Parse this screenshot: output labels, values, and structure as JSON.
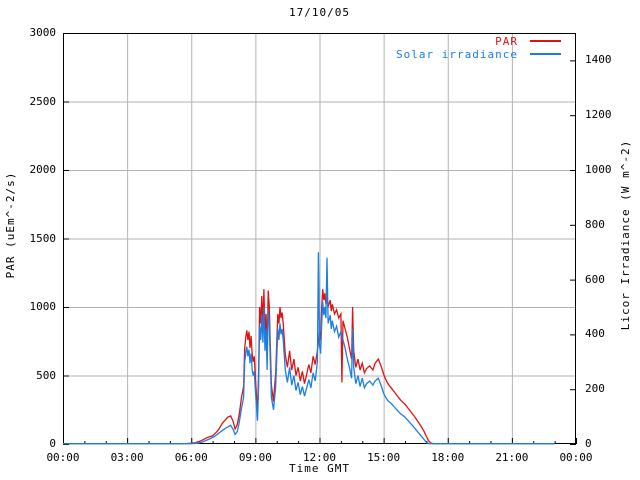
{
  "title": "17/10/05",
  "axes": {
    "x": {
      "label": "Time GMT",
      "range_hours": [
        0,
        24
      ],
      "major_tick_hours": [
        0,
        3,
        6,
        9,
        12,
        15,
        18,
        21,
        24
      ],
      "major_tick_labels": [
        "00:00",
        "03:00",
        "06:00",
        "09:00",
        "12:00",
        "15:00",
        "18:00",
        "21:00",
        "00:00"
      ],
      "minor_every_hours": 1
    },
    "y_left": {
      "label": "PAR (uEm^-2/s)",
      "range": [
        0,
        3000
      ],
      "ticks": [
        0,
        500,
        1000,
        1500,
        2000,
        2500,
        3000
      ],
      "tick_labels": [
        "0",
        "500",
        "1000",
        "1500",
        "2000",
        "2500",
        "3000"
      ]
    },
    "y_right": {
      "label": "Licor Irradiance (W m^-2)",
      "range": [
        0,
        1500
      ],
      "ticks": [
        0,
        200,
        400,
        600,
        800,
        1000,
        1200,
        1400
      ],
      "tick_labels": [
        "0",
        "200",
        "400",
        "600",
        "800",
        "1000",
        "1200",
        "1400"
      ]
    }
  },
  "legend": {
    "items": [
      {
        "label": "PAR",
        "color": "#e01212"
      },
      {
        "label": "Solar irradiance",
        "color": "#1b7ee5"
      }
    ]
  },
  "colors": {
    "axis": "#000000",
    "grid": "#b2b2b2",
    "background": "#ffffff",
    "par_line": "#e01212",
    "solar_line": "#1b7ee5"
  },
  "chart_data": {
    "type": "line",
    "title": "17/10/05",
    "xlabel": "Time GMT",
    "ylabel_left": "PAR (uEm^-2/s)",
    "ylabel_right": "Licor Irradiance (W m^-2)",
    "x_range_hours": [
      0,
      24
    ],
    "ylim_left": [
      0,
      3000
    ],
    "ylim_right": [
      0,
      1500
    ],
    "grid": true,
    "legend_position": "top-right-inside",
    "series": [
      {
        "name": "PAR",
        "axis": "left",
        "units": "uEm^-2/s",
        "color": "#e01212",
        "points": [
          [
            0,
            3
          ],
          [
            0.5,
            3
          ],
          [
            1,
            3
          ],
          [
            1.5,
            3
          ],
          [
            2,
            3
          ],
          [
            2.5,
            3
          ],
          [
            3,
            3
          ],
          [
            3.5,
            3
          ],
          [
            4,
            3
          ],
          [
            4.5,
            3
          ],
          [
            5,
            3
          ],
          [
            5.5,
            3
          ],
          [
            5.8,
            4
          ],
          [
            6,
            6
          ],
          [
            6.2,
            10
          ],
          [
            6.4,
            20
          ],
          [
            6.6,
            35
          ],
          [
            6.8,
            50
          ],
          [
            7,
            60
          ],
          [
            7.1,
            75
          ],
          [
            7.2,
            90
          ],
          [
            7.3,
            110
          ],
          [
            7.45,
            150
          ],
          [
            7.6,
            175
          ],
          [
            7.7,
            195
          ],
          [
            7.84,
            205
          ],
          [
            7.95,
            170
          ],
          [
            8.05,
            110
          ],
          [
            8.15,
            140
          ],
          [
            8.25,
            220
          ],
          [
            8.35,
            340
          ],
          [
            8.45,
            420
          ],
          [
            8.5,
            700
          ],
          [
            8.55,
            780
          ],
          [
            8.6,
            830
          ],
          [
            8.65,
            760
          ],
          [
            8.7,
            820
          ],
          [
            8.75,
            700
          ],
          [
            8.8,
            790
          ],
          [
            8.85,
            650
          ],
          [
            8.9,
            600
          ],
          [
            8.95,
            640
          ],
          [
            9,
            480
          ],
          [
            9.1,
            240
          ],
          [
            9.15,
            520
          ],
          [
            9.2,
            1000
          ],
          [
            9.25,
            880
          ],
          [
            9.3,
            1080
          ],
          [
            9.35,
            860
          ],
          [
            9.4,
            1130
          ],
          [
            9.45,
            800
          ],
          [
            9.5,
            950
          ],
          [
            9.55,
            640
          ],
          [
            9.6,
            1120
          ],
          [
            9.65,
            1000
          ],
          [
            9.7,
            720
          ],
          [
            9.75,
            430
          ],
          [
            9.85,
            310
          ],
          [
            9.95,
            520
          ],
          [
            10.05,
            950
          ],
          [
            10.1,
            880
          ],
          [
            10.15,
            1000
          ],
          [
            10.2,
            920
          ],
          [
            10.25,
            960
          ],
          [
            10.3,
            880
          ],
          [
            10.4,
            650
          ],
          [
            10.5,
            560
          ],
          [
            10.6,
            680
          ],
          [
            10.7,
            540
          ],
          [
            10.8,
            620
          ],
          [
            10.9,
            500
          ],
          [
            11,
            560
          ],
          [
            11.1,
            460
          ],
          [
            11.2,
            530
          ],
          [
            11.3,
            440
          ],
          [
            11.4,
            510
          ],
          [
            11.5,
            580
          ],
          [
            11.6,
            520
          ],
          [
            11.7,
            640
          ],
          [
            11.8,
            580
          ],
          [
            11.9,
            680
          ],
          [
            11.95,
            750
          ],
          [
            12,
            820
          ],
          [
            12.05,
            760
          ],
          [
            12.1,
            980
          ],
          [
            12.15,
            1130
          ],
          [
            12.2,
            1050
          ],
          [
            12.25,
            1100
          ],
          [
            12.3,
            1020
          ],
          [
            12.35,
            1080
          ],
          [
            12.4,
            1000
          ],
          [
            12.5,
            1050
          ],
          [
            12.55,
            970
          ],
          [
            12.6,
            1020
          ],
          [
            12.7,
            950
          ],
          [
            12.8,
            980
          ],
          [
            12.9,
            920
          ],
          [
            13,
            950
          ],
          [
            13.05,
            450
          ],
          [
            13.1,
            900
          ],
          [
            13.2,
            840
          ],
          [
            13.3,
            780
          ],
          [
            13.4,
            700
          ],
          [
            13.5,
            620
          ],
          [
            13.55,
            1000
          ],
          [
            13.6,
            680
          ],
          [
            13.7,
            560
          ],
          [
            13.8,
            620
          ],
          [
            13.9,
            540
          ],
          [
            14,
            590
          ],
          [
            14.1,
            520
          ],
          [
            14.2,
            550
          ],
          [
            14.35,
            570
          ],
          [
            14.5,
            540
          ],
          [
            14.6,
            590
          ],
          [
            14.75,
            620
          ],
          [
            14.9,
            560
          ],
          [
            15,
            510
          ],
          [
            15.1,
            470
          ],
          [
            15.2,
            440
          ],
          [
            15.35,
            410
          ],
          [
            15.5,
            380
          ],
          [
            15.65,
            350
          ],
          [
            15.8,
            320
          ],
          [
            16,
            290
          ],
          [
            16.15,
            260
          ],
          [
            16.3,
            230
          ],
          [
            16.45,
            200
          ],
          [
            16.6,
            165
          ],
          [
            16.75,
            130
          ],
          [
            16.9,
            90
          ],
          [
            17,
            55
          ],
          [
            17.1,
            25
          ],
          [
            17.2,
            8
          ],
          [
            17.3,
            3
          ],
          [
            17.5,
            3
          ],
          [
            18,
            3
          ],
          [
            19,
            3
          ],
          [
            20,
            3
          ],
          [
            21,
            3
          ],
          [
            22,
            3
          ],
          [
            23,
            3
          ]
        ]
      },
      {
        "name": "Solar irradiance",
        "axis": "right",
        "units": "W m^-2",
        "color": "#1b7ee5",
        "points": [
          [
            0,
            1
          ],
          [
            0.5,
            1
          ],
          [
            1,
            1
          ],
          [
            1.5,
            1
          ],
          [
            2,
            1
          ],
          [
            2.5,
            1
          ],
          [
            3,
            1
          ],
          [
            3.5,
            1
          ],
          [
            4,
            1
          ],
          [
            4.5,
            1
          ],
          [
            5,
            1
          ],
          [
            5.5,
            1
          ],
          [
            6,
            1
          ],
          [
            6.3,
            3
          ],
          [
            6.5,
            7
          ],
          [
            6.7,
            13
          ],
          [
            6.9,
            20
          ],
          [
            7.1,
            28
          ],
          [
            7.3,
            40
          ],
          [
            7.5,
            52
          ],
          [
            7.7,
            62
          ],
          [
            7.84,
            68
          ],
          [
            7.95,
            55
          ],
          [
            8.05,
            35
          ],
          [
            8.15,
            45
          ],
          [
            8.25,
            80
          ],
          [
            8.35,
            130
          ],
          [
            8.45,
            170
          ],
          [
            8.5,
            300
          ],
          [
            8.55,
            330
          ],
          [
            8.6,
            355
          ],
          [
            8.65,
            320
          ],
          [
            8.7,
            345
          ],
          [
            8.75,
            295
          ],
          [
            8.8,
            330
          ],
          [
            8.85,
            270
          ],
          [
            8.9,
            250
          ],
          [
            8.95,
            265
          ],
          [
            9,
            195
          ],
          [
            9.1,
            85
          ],
          [
            9.15,
            210
          ],
          [
            9.2,
            430
          ],
          [
            9.25,
            380
          ],
          [
            9.3,
            470
          ],
          [
            9.35,
            370
          ],
          [
            9.4,
            500
          ],
          [
            9.45,
            340
          ],
          [
            9.5,
            420
          ],
          [
            9.55,
            270
          ],
          [
            9.6,
            490
          ],
          [
            9.65,
            440
          ],
          [
            9.7,
            300
          ],
          [
            9.75,
            170
          ],
          [
            9.85,
            125
          ],
          [
            9.95,
            210
          ],
          [
            10.05,
            420
          ],
          [
            10.1,
            380
          ],
          [
            10.15,
            440
          ],
          [
            10.2,
            400
          ],
          [
            10.25,
            420
          ],
          [
            10.3,
            380
          ],
          [
            10.4,
            270
          ],
          [
            10.5,
            225
          ],
          [
            10.6,
            280
          ],
          [
            10.7,
            215
          ],
          [
            10.8,
            250
          ],
          [
            10.9,
            195
          ],
          [
            11,
            225
          ],
          [
            11.1,
            180
          ],
          [
            11.2,
            210
          ],
          [
            11.3,
            175
          ],
          [
            11.4,
            205
          ],
          [
            11.5,
            235
          ],
          [
            11.6,
            205
          ],
          [
            11.7,
            260
          ],
          [
            11.8,
            230
          ],
          [
            11.9,
            300
          ],
          [
            11.95,
            700
          ],
          [
            12,
            360
          ],
          [
            12.05,
            330
          ],
          [
            12.1,
            430
          ],
          [
            12.15,
            520
          ],
          [
            12.2,
            470
          ],
          [
            12.25,
            500
          ],
          [
            12.3,
            460
          ],
          [
            12.35,
            680
          ],
          [
            12.4,
            440
          ],
          [
            12.5,
            470
          ],
          [
            12.55,
            420
          ],
          [
            12.6,
            450
          ],
          [
            12.7,
            410
          ],
          [
            12.8,
            430
          ],
          [
            12.9,
            390
          ],
          [
            13,
            410
          ],
          [
            13.1,
            380
          ],
          [
            13.2,
            350
          ],
          [
            13.3,
            310
          ],
          [
            13.4,
            280
          ],
          [
            13.5,
            240
          ],
          [
            13.55,
            420
          ],
          [
            13.6,
            280
          ],
          [
            13.7,
            220
          ],
          [
            13.8,
            250
          ],
          [
            13.9,
            210
          ],
          [
            14,
            240
          ],
          [
            14.1,
            205
          ],
          [
            14.2,
            220
          ],
          [
            14.35,
            230
          ],
          [
            14.5,
            215
          ],
          [
            14.6,
            230
          ],
          [
            14.75,
            240
          ],
          [
            14.9,
            210
          ],
          [
            15,
            185
          ],
          [
            15.1,
            170
          ],
          [
            15.2,
            158
          ],
          [
            15.35,
            148
          ],
          [
            15.5,
            135
          ],
          [
            15.65,
            122
          ],
          [
            15.8,
            110
          ],
          [
            16,
            98
          ],
          [
            16.15,
            85
          ],
          [
            16.3,
            72
          ],
          [
            16.45,
            58
          ],
          [
            16.6,
            44
          ],
          [
            16.75,
            30
          ],
          [
            16.9,
            16
          ],
          [
            17,
            6
          ],
          [
            17.1,
            2
          ],
          [
            17.2,
            1
          ],
          [
            17.5,
            1
          ],
          [
            18,
            1
          ],
          [
            19,
            1
          ],
          [
            20,
            1
          ],
          [
            21,
            1
          ],
          [
            22,
            1
          ],
          [
            23,
            1
          ]
        ]
      }
    ]
  }
}
